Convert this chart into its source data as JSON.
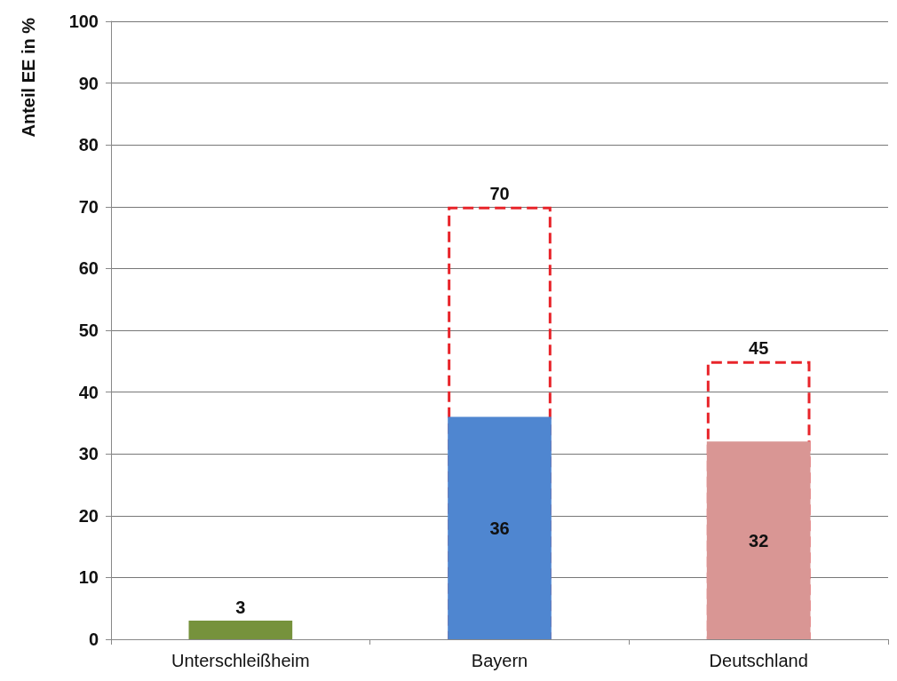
{
  "chart_data": {
    "type": "bar",
    "ylabel": "Anteil EE in %",
    "categories": [
      "Unterschleißheim",
      "Bayern",
      "Deutschland"
    ],
    "series": [
      {
        "values": [
          null,
          70,
          45
        ],
        "color": "#e8242a",
        "line_style": "dashed"
      },
      {
        "values": [
          3,
          36,
          32
        ],
        "colors": [
          "#76923c",
          "#4f86d0",
          "#d99694"
        ]
      }
    ],
    "ylim": [
      0,
      100
    ],
    "yticks": [
      0,
      10,
      20,
      30,
      40,
      50,
      60,
      70,
      80,
      90,
      100
    ],
    "grid": "y",
    "data_labels": true
  }
}
